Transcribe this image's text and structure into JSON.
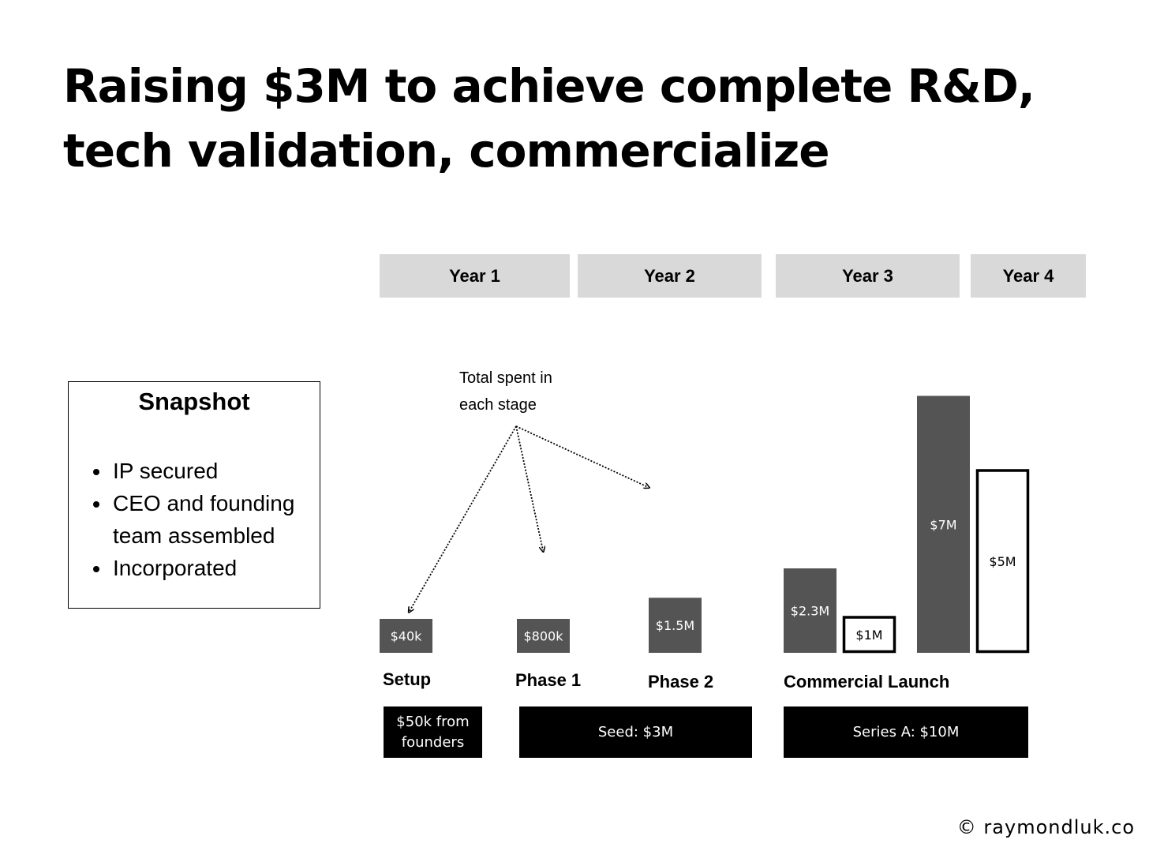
{
  "title": {
    "line1": "Raising $3M to achieve complete R&D,",
    "line2": "tech validation, commercialize"
  },
  "years": [
    "Year 1",
    "Year 2",
    "Year 3",
    "Year 4"
  ],
  "snapshot": {
    "heading": "Snapshot",
    "items": [
      "IP secured",
      "CEO and founding team assembled",
      "Incorporated"
    ]
  },
  "annotation": {
    "line1": "Total spent in",
    "line2": "each stage"
  },
  "stages": [
    "Setup",
    "Phase 1",
    "Phase 2",
    "Commercial Launch"
  ],
  "funding": {
    "founders_line1": "$50k from",
    "founders_line2": "founders",
    "seed": "Seed: $3M",
    "series_a": "Series A: $10M"
  },
  "copyright": "© raymondluk.co",
  "colors": {
    "spent": "#545454",
    "raised_outline": "#000000",
    "year_band": "#d9d9d9",
    "funding_band": "#000000"
  },
  "chart_data": {
    "type": "bar",
    "title": "",
    "ylim": [
      0,
      8
    ],
    "unit": "$M",
    "bars": [
      {
        "stage": "Setup",
        "value": 0.04,
        "label": "$40k",
        "style": "filled"
      },
      {
        "stage": "Phase 1",
        "value": 0.8,
        "label": "$800k",
        "style": "filled"
      },
      {
        "stage": "Phase 2",
        "value": 1.5,
        "label": "$1.5M",
        "style": "filled"
      },
      {
        "stage": "Commercial Launch",
        "value": 2.3,
        "label": "$2.3M",
        "style": "filled"
      },
      {
        "stage": "Commercial Launch",
        "value": 1,
        "label": "$1M",
        "style": "outline"
      },
      {
        "stage": "Commercial Launch",
        "value": 7,
        "label": "$7M",
        "style": "filled"
      },
      {
        "stage": "Commercial Launch",
        "value": 5,
        "label": "$5M",
        "style": "outline"
      }
    ]
  }
}
